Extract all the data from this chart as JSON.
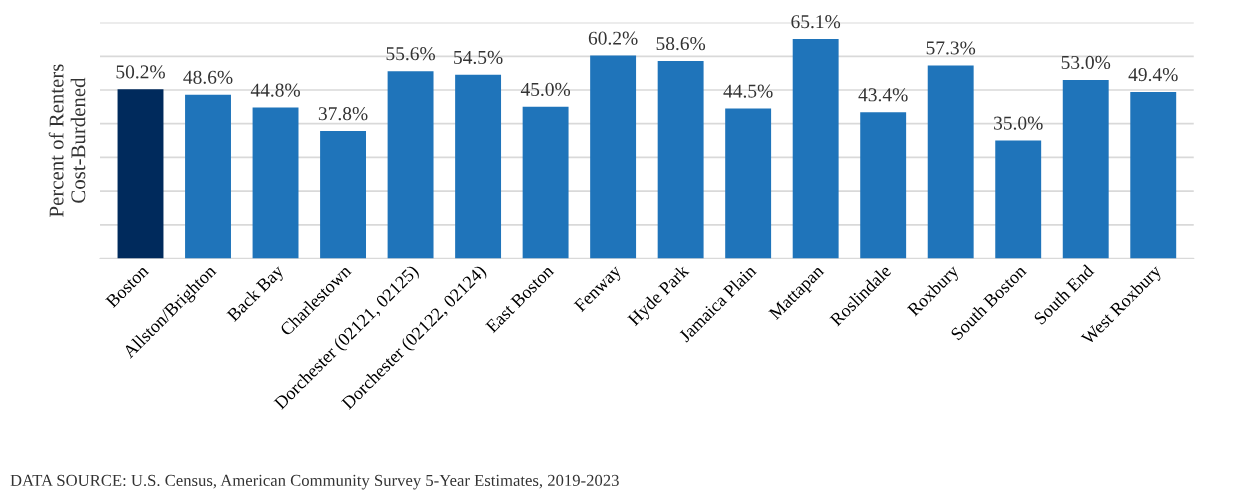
{
  "chart_data": {
    "type": "bar",
    "ylabel": "Percent of Renters\nCost-Burdened",
    "categories": [
      "Boston",
      "Allston/Brighton",
      "Back Bay",
      "Charlestown",
      "Dorchester (02121, 02125)",
      "Dorchester (02122, 02124)",
      "East Boston",
      "Fenway",
      "Hyde Park",
      "Jamaica Plain",
      "Mattapan",
      "Roslindale",
      "Roxbury",
      "South Boston",
      "South End",
      "West Roxbury"
    ],
    "values": [
      50.2,
      48.6,
      44.8,
      37.8,
      55.6,
      54.5,
      45.0,
      60.2,
      58.6,
      44.5,
      65.1,
      43.4,
      57.3,
      35.0,
      53.0,
      49.4
    ],
    "value_labels": [
      "50.2%",
      "48.6%",
      "44.8%",
      "37.8%",
      "55.6%",
      "54.5%",
      "45.0%",
      "60.2%",
      "58.6%",
      "44.5%",
      "65.1%",
      "43.4%",
      "57.3%",
      "35.0%",
      "53.0%",
      "49.4%"
    ],
    "colors": [
      "#002a5c",
      "#1f74ba",
      "#1f74ba",
      "#1f74ba",
      "#1f74ba",
      "#1f74ba",
      "#1f74ba",
      "#1f74ba",
      "#1f74ba",
      "#1f74ba",
      "#1f74ba",
      "#1f74ba",
      "#1f74ba",
      "#1f74ba",
      "#1f74ba",
      "#1f74ba"
    ],
    "ylim": [
      0,
      70
    ],
    "yticks": [
      {
        "value": 0,
        "label": null
      },
      {
        "value": 10,
        "label": null
      },
      {
        "value": 20,
        "label": null
      },
      {
        "value": 30,
        "label": null
      },
      {
        "value": 40,
        "label": null
      },
      {
        "value": 50,
        "label": null
      },
      {
        "value": 60,
        "label": null
      },
      {
        "value": 70,
        "label": null
      }
    ],
    "grid": "y",
    "legend": false,
    "annotations": [
      "DATA SOURCE: U.S. Census, American Community Survey 5-Year Estimates, 2019-2023"
    ]
  }
}
